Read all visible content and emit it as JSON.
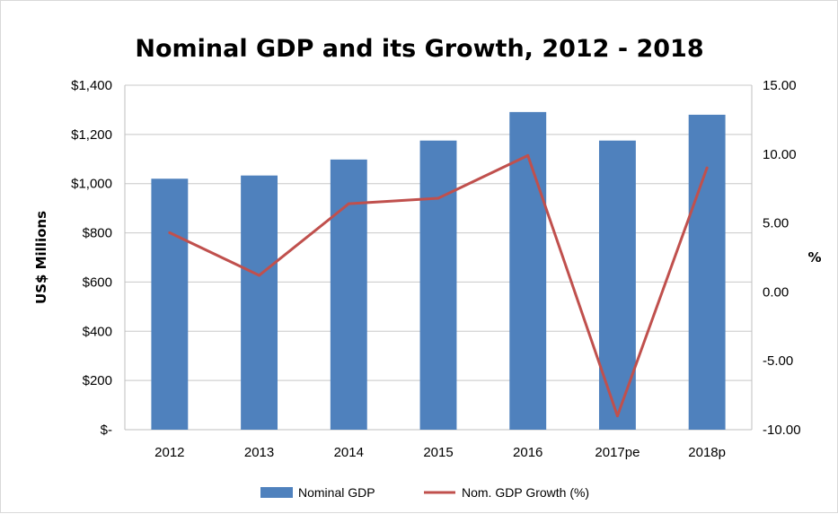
{
  "chart_data": {
    "type": "bar+line",
    "title": "Nominal GDP and its Growth, 2012 - 2018",
    "categories": [
      "2012",
      "2013",
      "2014",
      "2015",
      "2016",
      "2017pe",
      "2018p"
    ],
    "series": [
      {
        "name": "Nominal GDP",
        "type": "bar",
        "axis": "left",
        "color": "#4f81bd",
        "values": [
          1020,
          1033,
          1098,
          1175,
          1291,
          1175,
          1280
        ]
      },
      {
        "name": "Nom. GDP Growth (%)",
        "type": "line",
        "axis": "right",
        "color": "#c0504d",
        "values": [
          4.3,
          1.2,
          6.4,
          6.8,
          9.9,
          -9.0,
          9.0
        ]
      }
    ],
    "ylabel": "US$ Millions",
    "y2label": "%",
    "ylim": [
      0,
      1400
    ],
    "y2lim": [
      -10,
      15
    ],
    "yticks": [
      "$-",
      "$200",
      "$400",
      "$600",
      "$800",
      "$1,000",
      "$1,200",
      "$1,400"
    ],
    "y2ticks": [
      "-10.00",
      "-5.00",
      "0.00",
      "5.00",
      "10.00",
      "15.00"
    ],
    "grid": true,
    "legend_position": "bottom"
  }
}
